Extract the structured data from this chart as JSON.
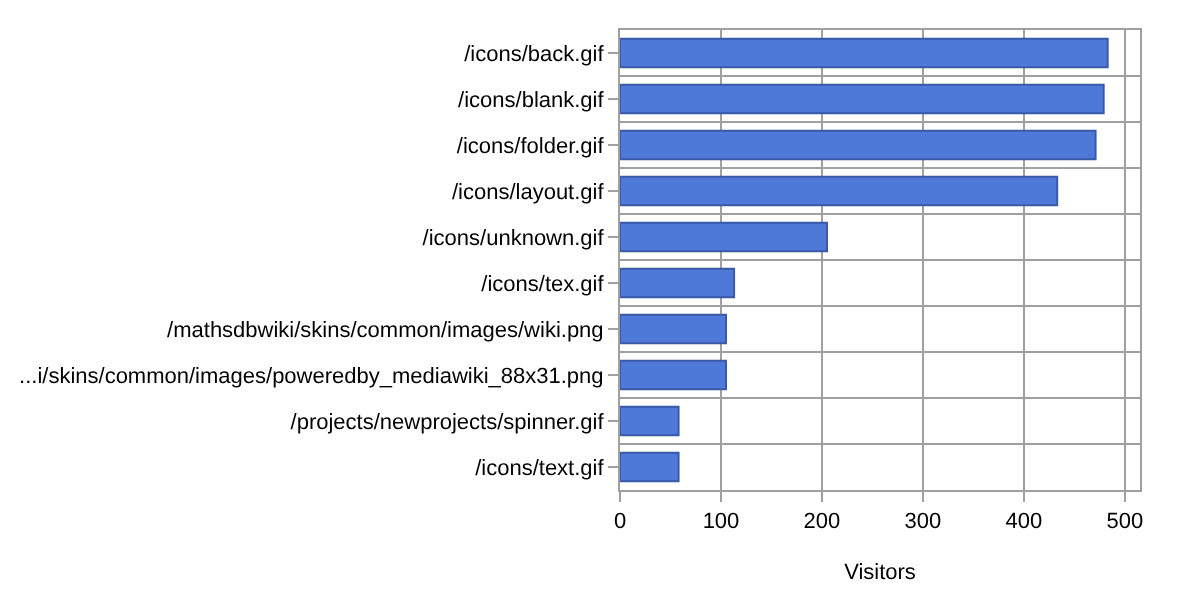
{
  "chart_data": {
    "type": "bar",
    "orientation": "horizontal",
    "xlabel": "Visitors",
    "categories": [
      "/icons/back.gif",
      "/icons/blank.gif",
      "/icons/folder.gif",
      "/icons/layout.gif",
      "/icons/unknown.gif",
      "/icons/tex.gif",
      "/mathsdbwiki/skins/common/images/wiki.png",
      "...i/skins/common/images/poweredby_mediawiki_88x31.png",
      "/projects/newprojects/spinner.gif",
      "/icons/text.gif"
    ],
    "values": [
      483,
      479,
      471,
      433,
      205,
      113,
      105,
      105,
      58,
      58
    ],
    "color": "#4f79d9",
    "xlim": [
      0,
      515
    ],
    "xticks": [
      0,
      100,
      200,
      300,
      400,
      500
    ],
    "grid": true
  }
}
